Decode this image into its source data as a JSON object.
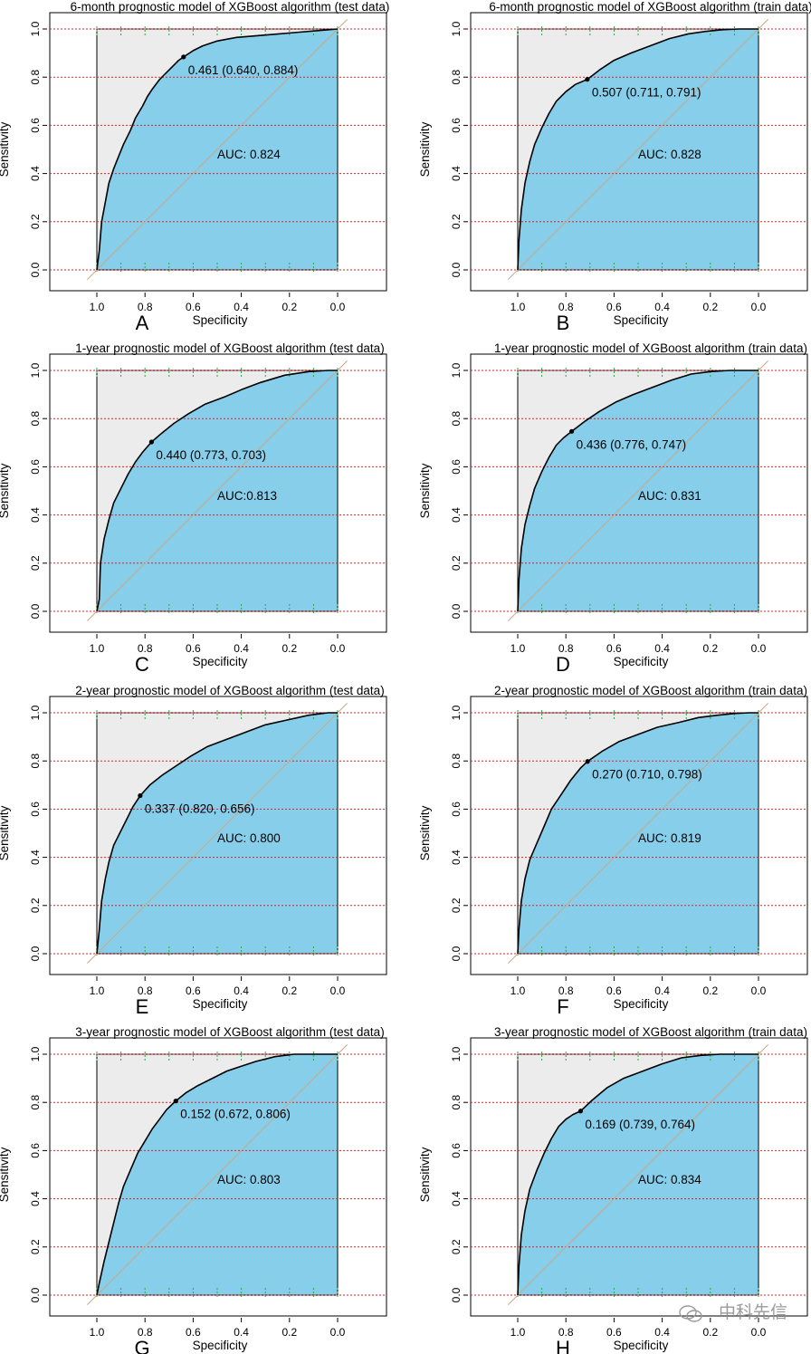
{
  "chart_data": [
    {
      "type": "line",
      "panel_label": "A",
      "title": "6-month prognostic model of XGBoost algorithm (test data)",
      "xlabel": "Specificity",
      "ylabel": "Sensitivity",
      "xlim": [
        1.0,
        0.0
      ],
      "ylim": [
        0.0,
        1.0
      ],
      "x_ticks": [
        "1.0",
        "0.8",
        "0.6",
        "0.4",
        "0.2",
        "0.0"
      ],
      "y_ticks": [
        "0.0",
        "0.2",
        "0.4",
        "0.6",
        "0.8",
        "1.0"
      ],
      "threshold_label": "0.461 (0.640, 0.884)",
      "auc_label": "AUC: 0.824",
      "best_point": {
        "specificity": 0.64,
        "sensitivity": 0.884
      },
      "roc_curve": {
        "specificity": [
          1.0,
          0.99,
          0.98,
          0.965,
          0.95,
          0.93,
          0.91,
          0.89,
          0.86,
          0.84,
          0.81,
          0.79,
          0.77,
          0.74,
          0.72,
          0.69,
          0.66,
          0.64,
          0.6,
          0.56,
          0.5,
          0.42,
          0.3,
          0.18,
          0.06,
          0.0
        ],
        "sensitivity": [
          0.0,
          0.08,
          0.2,
          0.28,
          0.36,
          0.42,
          0.47,
          0.52,
          0.58,
          0.63,
          0.68,
          0.72,
          0.75,
          0.79,
          0.81,
          0.84,
          0.87,
          0.884,
          0.91,
          0.93,
          0.95,
          0.965,
          0.975,
          0.985,
          0.995,
          1.0
        ]
      },
      "series": [
        {
          "values": [
            0.884
          ]
        }
      ]
    },
    {
      "type": "line",
      "panel_label": "B",
      "title": "6-month prognostic model of XGBoost algorithm (train data)",
      "xlabel": "Specificity",
      "ylabel": "Sensitivity",
      "xlim": [
        1.0,
        0.0
      ],
      "ylim": [
        0.0,
        1.0
      ],
      "x_ticks": [
        "1.0",
        "0.8",
        "0.6",
        "0.4",
        "0.2",
        "0.0"
      ],
      "y_ticks": [
        "0.0",
        "0.2",
        "0.4",
        "0.6",
        "0.8",
        "1.0"
      ],
      "threshold_label": "0.507 (0.711, 0.791)",
      "auc_label": "AUC: 0.828",
      "best_point": {
        "specificity": 0.711,
        "sensitivity": 0.791
      },
      "roc_curve": {
        "specificity": [
          1.0,
          0.995,
          0.985,
          0.97,
          0.95,
          0.93,
          0.9,
          0.87,
          0.84,
          0.8,
          0.76,
          0.711,
          0.66,
          0.6,
          0.53,
          0.45,
          0.37,
          0.29,
          0.22,
          0.15,
          0.08,
          0.0
        ],
        "sensitivity": [
          0.0,
          0.12,
          0.25,
          0.36,
          0.45,
          0.52,
          0.59,
          0.65,
          0.7,
          0.74,
          0.77,
          0.791,
          0.83,
          0.87,
          0.9,
          0.93,
          0.96,
          0.98,
          0.99,
          0.997,
          1.0,
          1.0
        ]
      },
      "series": [
        {
          "values": [
            0.791
          ]
        }
      ]
    },
    {
      "type": "line",
      "panel_label": "C",
      "title": "1-year prognostic model of XGBoost algorithm (test data)",
      "xlabel": "Specificity",
      "ylabel": "Sensitivity",
      "xlim": [
        1.0,
        0.0
      ],
      "ylim": [
        0.0,
        1.0
      ],
      "x_ticks": [
        "1.0",
        "0.8",
        "0.6",
        "0.4",
        "0.2",
        "0.0"
      ],
      "y_ticks": [
        "0.0",
        "0.2",
        "0.4",
        "0.6",
        "0.8",
        "1.0"
      ],
      "threshold_label": "0.440 (0.773, 0.703)",
      "auc_label": "AUC:0.813",
      "best_point": {
        "specificity": 0.773,
        "sensitivity": 0.703
      },
      "roc_curve": {
        "specificity": [
          1.0,
          0.99,
          0.985,
          0.97,
          0.95,
          0.93,
          0.9,
          0.87,
          0.84,
          0.81,
          0.773,
          0.73,
          0.68,
          0.62,
          0.55,
          0.47,
          0.4,
          0.32,
          0.22,
          0.12,
          0.04,
          0.0
        ],
        "sensitivity": [
          0.0,
          0.05,
          0.2,
          0.3,
          0.38,
          0.45,
          0.51,
          0.57,
          0.62,
          0.66,
          0.703,
          0.74,
          0.78,
          0.82,
          0.86,
          0.89,
          0.92,
          0.95,
          0.98,
          0.995,
          1.0,
          1.0
        ]
      },
      "series": [
        {
          "values": [
            0.703
          ]
        }
      ]
    },
    {
      "type": "line",
      "panel_label": "D",
      "title": "1-year prognostic model of XGBoost algorithm (train data)",
      "xlabel": "Specificity",
      "ylabel": "Sensitivity",
      "xlim": [
        1.0,
        0.0
      ],
      "ylim": [
        0.0,
        1.0
      ],
      "x_ticks": [
        "1.0",
        "0.8",
        "0.6",
        "0.4",
        "0.2",
        "0.0"
      ],
      "y_ticks": [
        "0.0",
        "0.2",
        "0.4",
        "0.6",
        "0.8",
        "1.0"
      ],
      "threshold_label": "0.436 (0.776, 0.747)",
      "auc_label": "AUC: 0.831",
      "best_point": {
        "specificity": 0.776,
        "sensitivity": 0.747
      },
      "roc_curve": {
        "specificity": [
          1.0,
          0.995,
          0.985,
          0.97,
          0.95,
          0.93,
          0.9,
          0.87,
          0.84,
          0.81,
          0.776,
          0.72,
          0.66,
          0.59,
          0.52,
          0.44,
          0.36,
          0.28,
          0.2,
          0.12,
          0.05,
          0.0
        ],
        "sensitivity": [
          0.0,
          0.13,
          0.26,
          0.36,
          0.44,
          0.51,
          0.58,
          0.64,
          0.69,
          0.72,
          0.747,
          0.79,
          0.83,
          0.87,
          0.9,
          0.93,
          0.96,
          0.985,
          0.995,
          1.0,
          1.0,
          1.0
        ]
      },
      "series": [
        {
          "values": [
            0.747
          ]
        }
      ]
    },
    {
      "type": "line",
      "panel_label": "E",
      "title": "2-year prognostic model of XGBoost algorithm (test data)",
      "xlabel": "Specificity",
      "ylabel": "Sensitivity",
      "xlim": [
        1.0,
        0.0
      ],
      "ylim": [
        0.0,
        1.0
      ],
      "x_ticks": [
        "1.0",
        "0.8",
        "0.6",
        "0.4",
        "0.2",
        "0.0"
      ],
      "y_ticks": [
        "0.0",
        "0.2",
        "0.4",
        "0.6",
        "0.8",
        "1.0"
      ],
      "threshold_label": "0.337 (0.820, 0.656)",
      "auc_label": "AUC: 0.800",
      "best_point": {
        "specificity": 0.82,
        "sensitivity": 0.656
      },
      "roc_curve": {
        "specificity": [
          1.0,
          0.99,
          0.98,
          0.965,
          0.95,
          0.93,
          0.9,
          0.87,
          0.85,
          0.82,
          0.78,
          0.73,
          0.67,
          0.61,
          0.54,
          0.46,
          0.38,
          0.3,
          0.21,
          0.12,
          0.04,
          0.0
        ],
        "sensitivity": [
          0.0,
          0.1,
          0.22,
          0.31,
          0.38,
          0.45,
          0.51,
          0.57,
          0.61,
          0.656,
          0.7,
          0.74,
          0.78,
          0.82,
          0.86,
          0.89,
          0.92,
          0.95,
          0.97,
          0.99,
          1.0,
          1.0
        ]
      },
      "series": [
        {
          "values": [
            0.656
          ]
        }
      ]
    },
    {
      "type": "line",
      "panel_label": "F",
      "title": "2-year prognostic model of XGBoost algorithm (train data)",
      "xlabel": "Specificity",
      "ylabel": "Sensitivity",
      "xlim": [
        1.0,
        0.0
      ],
      "ylim": [
        0.0,
        1.0
      ],
      "x_ticks": [
        "1.0",
        "0.8",
        "0.6",
        "0.4",
        "0.2",
        "0.0"
      ],
      "y_ticks": [
        "0.0",
        "0.2",
        "0.4",
        "0.6",
        "0.8",
        "1.0"
      ],
      "threshold_label": "0.270 (0.710, 0.798)",
      "auc_label": "AUC: 0.819",
      "best_point": {
        "specificity": 0.71,
        "sensitivity": 0.798
      },
      "roc_curve": {
        "specificity": [
          1.0,
          0.995,
          0.985,
          0.97,
          0.95,
          0.92,
          0.89,
          0.86,
          0.82,
          0.78,
          0.74,
          0.71,
          0.65,
          0.58,
          0.5,
          0.42,
          0.33,
          0.25,
          0.17,
          0.1,
          0.04,
          0.0
        ],
        "sensitivity": [
          0.0,
          0.1,
          0.22,
          0.31,
          0.39,
          0.46,
          0.53,
          0.6,
          0.66,
          0.72,
          0.77,
          0.798,
          0.84,
          0.88,
          0.91,
          0.94,
          0.96,
          0.98,
          0.99,
          0.997,
          1.0,
          1.0
        ]
      },
      "series": [
        {
          "values": [
            0.798
          ]
        }
      ]
    },
    {
      "type": "line",
      "panel_label": "G",
      "title": "3-year prognostic model of XGBoost algorithm (test data)",
      "xlabel": "Specificity",
      "ylabel": "Sensitivity",
      "xlim": [
        1.0,
        0.0
      ],
      "ylim": [
        0.0,
        1.0
      ],
      "x_ticks": [
        "1.0",
        "0.8",
        "0.6",
        "0.4",
        "0.2",
        "0.0"
      ],
      "y_ticks": [
        "0.0",
        "0.2",
        "0.4",
        "0.6",
        "0.8",
        "1.0"
      ],
      "threshold_label": "0.152 (0.672, 0.806)",
      "auc_label": "AUC: 0.803",
      "best_point": {
        "specificity": 0.672,
        "sensitivity": 0.806
      },
      "roc_curve": {
        "specificity": [
          1.0,
          0.99,
          0.97,
          0.95,
          0.93,
          0.91,
          0.89,
          0.86,
          0.83,
          0.8,
          0.77,
          0.74,
          0.71,
          0.672,
          0.63,
          0.58,
          0.52,
          0.46,
          0.4,
          0.34,
          0.26,
          0.18,
          0.1,
          0.04,
          0.0
        ],
        "sensitivity": [
          0.0,
          0.05,
          0.14,
          0.22,
          0.3,
          0.38,
          0.45,
          0.52,
          0.59,
          0.64,
          0.69,
          0.73,
          0.77,
          0.806,
          0.84,
          0.87,
          0.9,
          0.93,
          0.95,
          0.97,
          0.99,
          1.0,
          1.0,
          1.0,
          1.0
        ]
      },
      "series": [
        {
          "values": [
            0.806
          ]
        }
      ]
    },
    {
      "type": "line",
      "panel_label": "H",
      "title": "3-year prognostic model of XGBoost algorithm (train data)",
      "xlabel": "Specificity",
      "ylabel": "Sensitivity",
      "xlim": [
        1.0,
        0.0
      ],
      "ylim": [
        0.0,
        1.0
      ],
      "x_ticks": [
        "1.0",
        "0.8",
        "0.6",
        "0.4",
        "0.2",
        "0.0"
      ],
      "y_ticks": [
        "0.0",
        "0.2",
        "0.4",
        "0.6",
        "0.8",
        "1.0"
      ],
      "threshold_label": "0.169 (0.739, 0.764)",
      "auc_label": "AUC: 0.834",
      "best_point": {
        "specificity": 0.739,
        "sensitivity": 0.764
      },
      "roc_curve": {
        "specificity": [
          1.0,
          0.995,
          0.985,
          0.97,
          0.95,
          0.92,
          0.89,
          0.86,
          0.83,
          0.8,
          0.77,
          0.739,
          0.69,
          0.63,
          0.56,
          0.48,
          0.4,
          0.32,
          0.24,
          0.16,
          0.08,
          0.0
        ],
        "sensitivity": [
          0.0,
          0.12,
          0.25,
          0.35,
          0.44,
          0.52,
          0.59,
          0.65,
          0.7,
          0.73,
          0.75,
          0.764,
          0.81,
          0.86,
          0.9,
          0.93,
          0.96,
          0.985,
          0.995,
          1.0,
          1.0,
          1.0
        ]
      },
      "series": [
        {
          "values": [
            0.764
          ]
        }
      ]
    }
  ],
  "colors": {
    "fill_under_curve": "#87ceeb",
    "fill_above_curve": "#ececec",
    "roc_line": "#000000",
    "diagonal": "#c8a98a",
    "h_gridlines": "#dd2222",
    "v_gridlines": "#22aa44"
  },
  "watermark": {
    "text": "中科先信",
    "icon": "wechat-icon"
  }
}
